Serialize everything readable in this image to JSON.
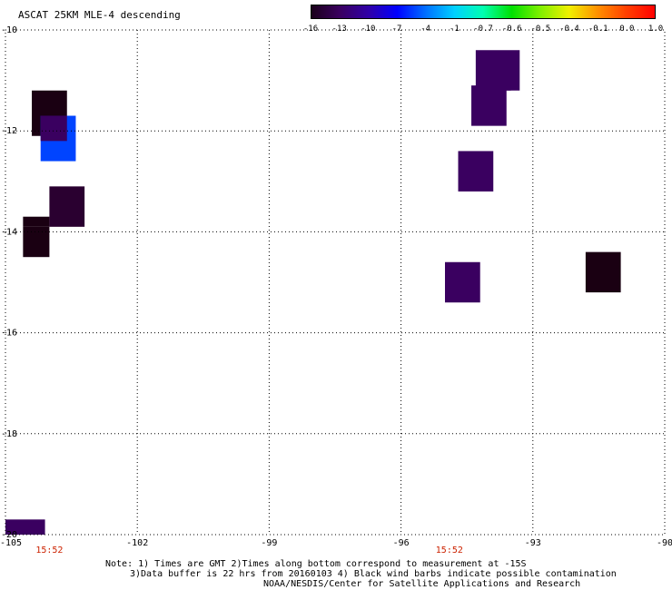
{
  "title": "ASCAT 25KM MLE-4 descending",
  "colorbar": {
    "labels": [
      "-16",
      "-13",
      "-10",
      "-7",
      "-4",
      "-1",
      "-0.7",
      "-0.6",
      "-0.5",
      "-0.4",
      "-0.1",
      "0.0",
      "1.0"
    ],
    "colors": [
      "#1a001a",
      "#3a0060",
      "#3000a8",
      "#0000ff",
      "#0070ff",
      "#00d0ff",
      "#00ffb0",
      "#00e000",
      "#80f000",
      "#f0f000",
      "#ff9000",
      "#ff4000",
      "#ff0000"
    ]
  },
  "map": {
    "lon_ticks": [
      "-105",
      "-102",
      "-99",
      "-96",
      "-93",
      "-90"
    ],
    "lat_ticks": [
      "-10",
      "-12",
      "-14",
      "-16",
      "-18",
      "-20"
    ],
    "lon_range": [
      -105,
      -90
    ],
    "lat_range": [
      -10,
      -20
    ],
    "time_labels": [
      {
        "text": "15:52",
        "lon": -104.0
      },
      {
        "text": "15:52",
        "lon": -94.9
      }
    ],
    "time_color": "#cc2200",
    "cells": [
      {
        "lon": [
          -104.4,
          -103.6
        ],
        "lat": [
          -11.2,
          -12.1
        ],
        "color": "#1a0012"
      },
      {
        "lon": [
          -104.2,
          -103.4
        ],
        "lat": [
          -11.7,
          -12.6
        ],
        "color": "#0044ff"
      },
      {
        "lon": [
          -104.2,
          -103.6
        ],
        "lat": [
          -11.7,
          -12.2
        ],
        "color": "#3a0060"
      },
      {
        "lon": [
          -104.0,
          -103.2
        ],
        "lat": [
          -13.1,
          -13.9
        ],
        "color": "#2a0030"
      },
      {
        "lon": [
          -104.6,
          -104.0
        ],
        "lat": [
          -13.7,
          -13.9
        ],
        "color": "#1a0012"
      },
      {
        "lon": [
          -104.6,
          -104.0
        ],
        "lat": [
          -13.9,
          -14.5
        ],
        "color": "#1a0012"
      },
      {
        "lon": [
          -105.0,
          -104.1
        ],
        "lat": [
          -19.7,
          -20.0
        ],
        "color": "#3a0060"
      },
      {
        "lon": [
          -94.3,
          -93.3
        ],
        "lat": [
          -10.4,
          -11.2
        ],
        "color": "#3a0060"
      },
      {
        "lon": [
          -94.3,
          -93.5
        ],
        "lat": [
          -11.1,
          -11.2
        ],
        "color": "#3a0060"
      },
      {
        "lon": [
          -94.4,
          -93.6
        ],
        "lat": [
          -11.1,
          -11.9
        ],
        "color": "#3a0060"
      },
      {
        "lon": [
          -94.7,
          -93.9
        ],
        "lat": [
          -12.4,
          -13.2
        ],
        "color": "#3a0060"
      },
      {
        "lon": [
          -95.0,
          -94.2
        ],
        "lat": [
          -14.6,
          -15.4
        ],
        "color": "#3a0060"
      },
      {
        "lon": [
          -91.8,
          -91.0
        ],
        "lat": [
          -14.4,
          -15.2
        ],
        "color": "#1a0012"
      }
    ]
  },
  "notes": [
    "Note: 1) Times are GMT 2)Times along bottom correspond to measurement at -15S",
    "3)Data buffer is 22 hrs from 20160103 4) Black wind barbs indicate possible contamination",
    "NOAA/NESDIS/Center for Satellite Applications and Research"
  ]
}
